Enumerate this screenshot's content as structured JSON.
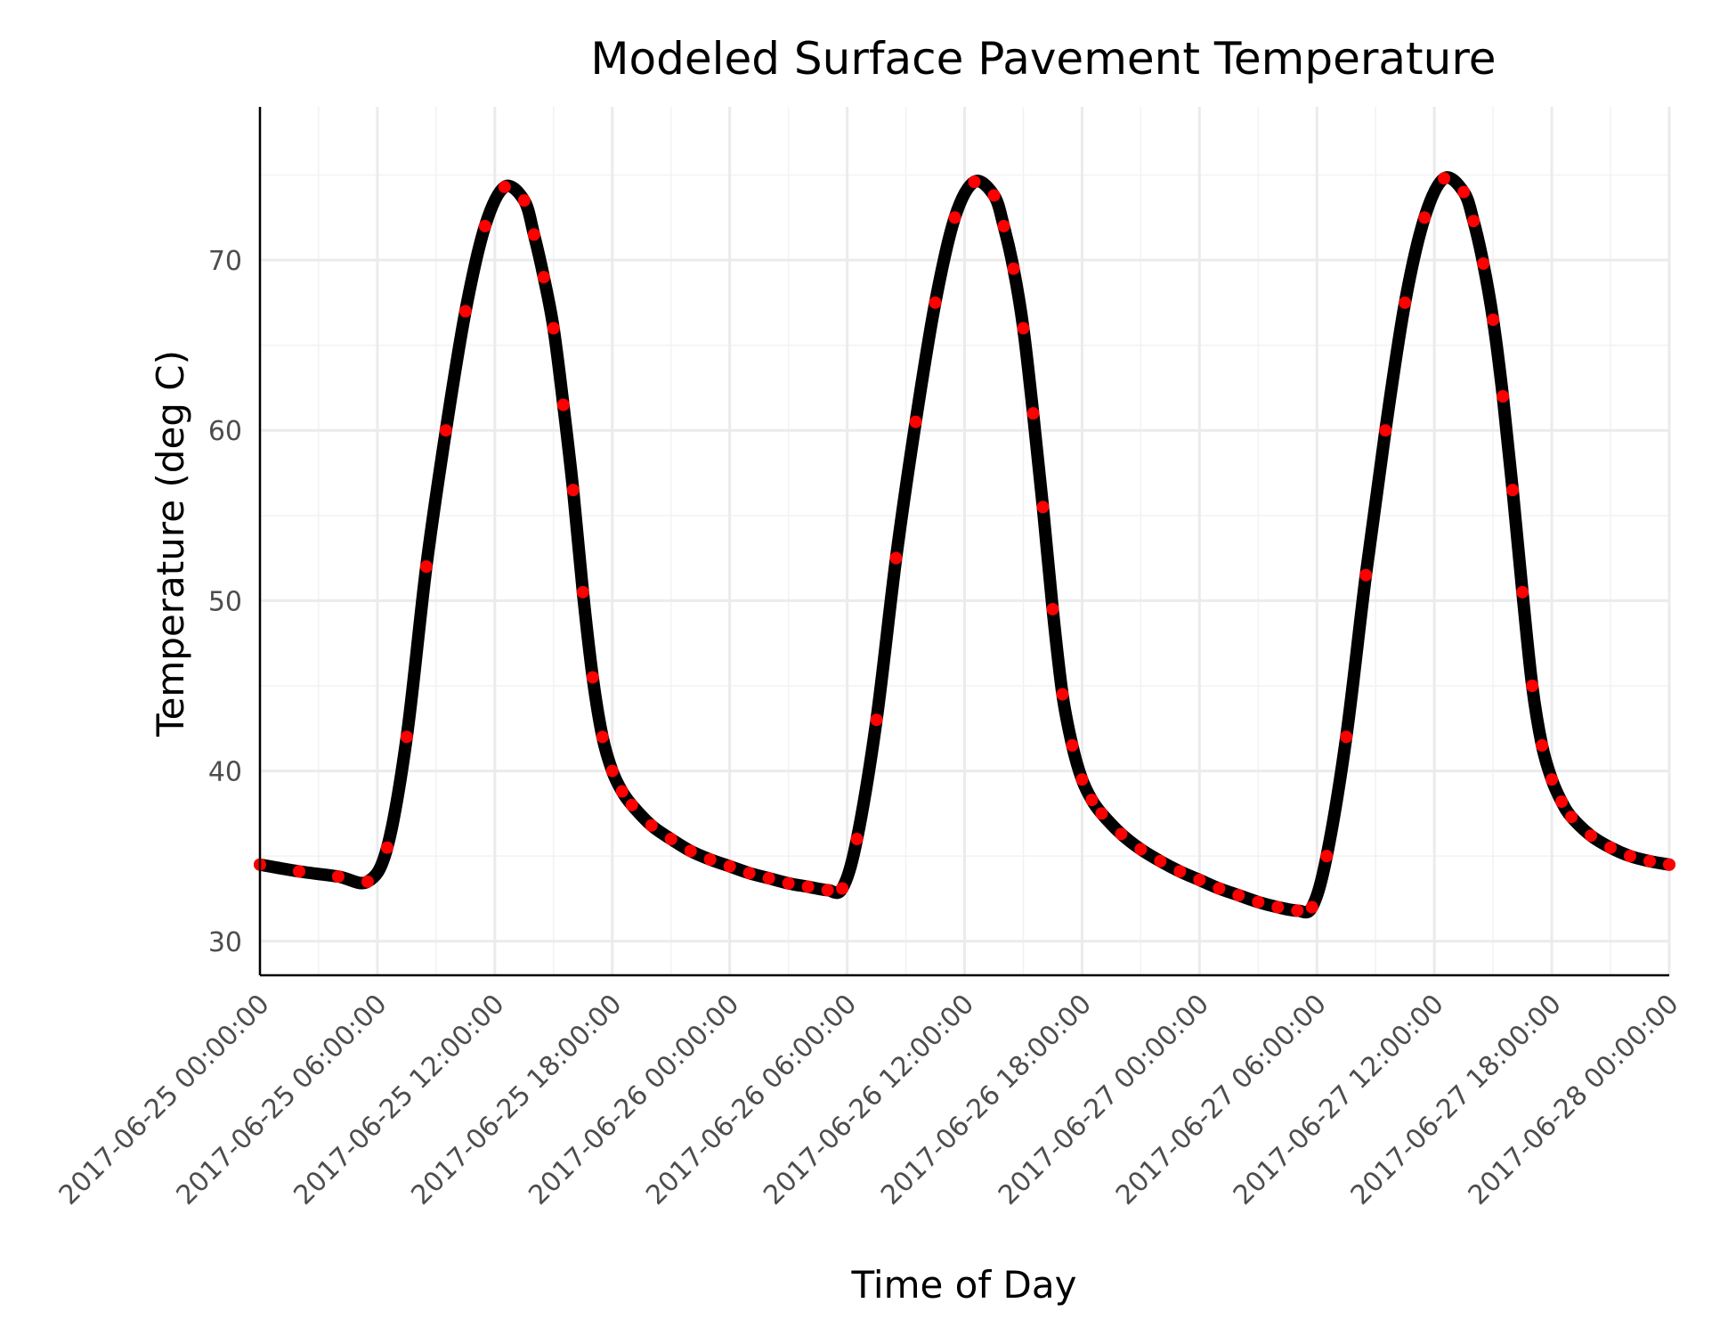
{
  "chart_data": {
    "type": "line",
    "title": "Modeled Surface Pavement Temperature",
    "xlabel": "Time of Day",
    "ylabel": "Temperature (deg C)",
    "x_tick_labels": [
      "2017-06-25 00:00:00",
      "2017-06-25 06:00:00",
      "2017-06-25 12:00:00",
      "2017-06-25 18:00:00",
      "2017-06-26 00:00:00",
      "2017-06-26 06:00:00",
      "2017-06-26 12:00:00",
      "2017-06-26 18:00:00",
      "2017-06-27 00:00:00",
      "2017-06-27 06:00:00",
      "2017-06-27 12:00:00",
      "2017-06-27 18:00:00",
      "2017-06-28 00:00:00"
    ],
    "y_ticks": [
      30,
      40,
      50,
      60,
      70
    ],
    "xlim": [
      "2017-06-25 00:00:00",
      "2017-06-28 00:00:00"
    ],
    "ylim": [
      28,
      79
    ],
    "grid": true,
    "series": [
      {
        "color": "#000000",
        "marker_color": "#ff0000",
        "x": [
          "2017-06-25 00:00:00",
          "2017-06-25 02:00:00",
          "2017-06-25 04:00:00",
          "2017-06-25 05:30:00",
          "2017-06-25 06:30:00",
          "2017-06-25 07:30:00",
          "2017-06-25 08:30:00",
          "2017-06-25 09:30:00",
          "2017-06-25 10:30:00",
          "2017-06-25 11:30:00",
          "2017-06-25 12:30:00",
          "2017-06-25 13:30:00",
          "2017-06-25 14:00:00",
          "2017-06-25 14:30:00",
          "2017-06-25 15:00:00",
          "2017-06-25 15:30:00",
          "2017-06-25 16:00:00",
          "2017-06-25 16:30:00",
          "2017-06-25 17:00:00",
          "2017-06-25 17:30:00",
          "2017-06-25 18:00:00",
          "2017-06-25 18:30:00",
          "2017-06-25 19:00:00",
          "2017-06-25 20:00:00",
          "2017-06-25 21:00:00",
          "2017-06-25 22:00:00",
          "2017-06-25 23:00:00",
          "2017-06-26 00:00:00",
          "2017-06-26 01:00:00",
          "2017-06-26 02:00:00",
          "2017-06-26 03:00:00",
          "2017-06-26 04:00:00",
          "2017-06-26 05:00:00",
          "2017-06-26 05:45:00",
          "2017-06-26 06:30:00",
          "2017-06-26 07:30:00",
          "2017-06-26 08:30:00",
          "2017-06-26 09:30:00",
          "2017-06-26 10:30:00",
          "2017-06-26 11:30:00",
          "2017-06-26 12:30:00",
          "2017-06-26 13:30:00",
          "2017-06-26 14:00:00",
          "2017-06-26 14:30:00",
          "2017-06-26 15:00:00",
          "2017-06-26 15:30:00",
          "2017-06-26 16:00:00",
          "2017-06-26 16:30:00",
          "2017-06-26 17:00:00",
          "2017-06-26 17:30:00",
          "2017-06-26 18:00:00",
          "2017-06-26 18:30:00",
          "2017-06-26 19:00:00",
          "2017-06-26 20:00:00",
          "2017-06-26 21:00:00",
          "2017-06-26 22:00:00",
          "2017-06-26 23:00:00",
          "2017-06-27 00:00:00",
          "2017-06-27 01:00:00",
          "2017-06-27 02:00:00",
          "2017-06-27 03:00:00",
          "2017-06-27 04:00:00",
          "2017-06-27 05:00:00",
          "2017-06-27 05:45:00",
          "2017-06-27 06:30:00",
          "2017-06-27 07:30:00",
          "2017-06-27 08:30:00",
          "2017-06-27 09:30:00",
          "2017-06-27 10:30:00",
          "2017-06-27 11:30:00",
          "2017-06-27 12:30:00",
          "2017-06-27 13:30:00",
          "2017-06-27 14:00:00",
          "2017-06-27 14:30:00",
          "2017-06-27 15:00:00",
          "2017-06-27 15:30:00",
          "2017-06-27 16:00:00",
          "2017-06-27 16:30:00",
          "2017-06-27 17:00:00",
          "2017-06-27 17:30:00",
          "2017-06-27 18:00:00",
          "2017-06-27 18:30:00",
          "2017-06-27 19:00:00",
          "2017-06-27 20:00:00",
          "2017-06-27 21:00:00",
          "2017-06-27 22:00:00",
          "2017-06-27 23:00:00",
          "2017-06-28 00:00:00"
        ],
        "y": [
          34.5,
          34.1,
          33.8,
          33.5,
          35.5,
          42.0,
          52.0,
          60.0,
          67.0,
          72.0,
          74.3,
          73.5,
          71.5,
          69.0,
          66.0,
          61.5,
          56.5,
          50.5,
          45.5,
          42.0,
          40.0,
          38.8,
          38.0,
          36.8,
          36.0,
          35.3,
          34.8,
          34.4,
          34.0,
          33.7,
          33.4,
          33.2,
          33.0,
          33.1,
          36.0,
          43.0,
          52.5,
          60.5,
          67.5,
          72.5,
          74.6,
          73.8,
          72.0,
          69.5,
          66.0,
          61.0,
          55.5,
          49.5,
          44.5,
          41.5,
          39.5,
          38.3,
          37.5,
          36.3,
          35.4,
          34.7,
          34.1,
          33.6,
          33.1,
          32.7,
          32.3,
          32.0,
          31.8,
          32.0,
          35.0,
          42.0,
          51.5,
          60.0,
          67.5,
          72.5,
          74.8,
          74.0,
          72.3,
          69.8,
          66.5,
          62.0,
          56.5,
          50.5,
          45.0,
          41.5,
          39.5,
          38.2,
          37.3,
          36.2,
          35.5,
          35.0,
          34.7,
          34.5
        ]
      }
    ]
  }
}
